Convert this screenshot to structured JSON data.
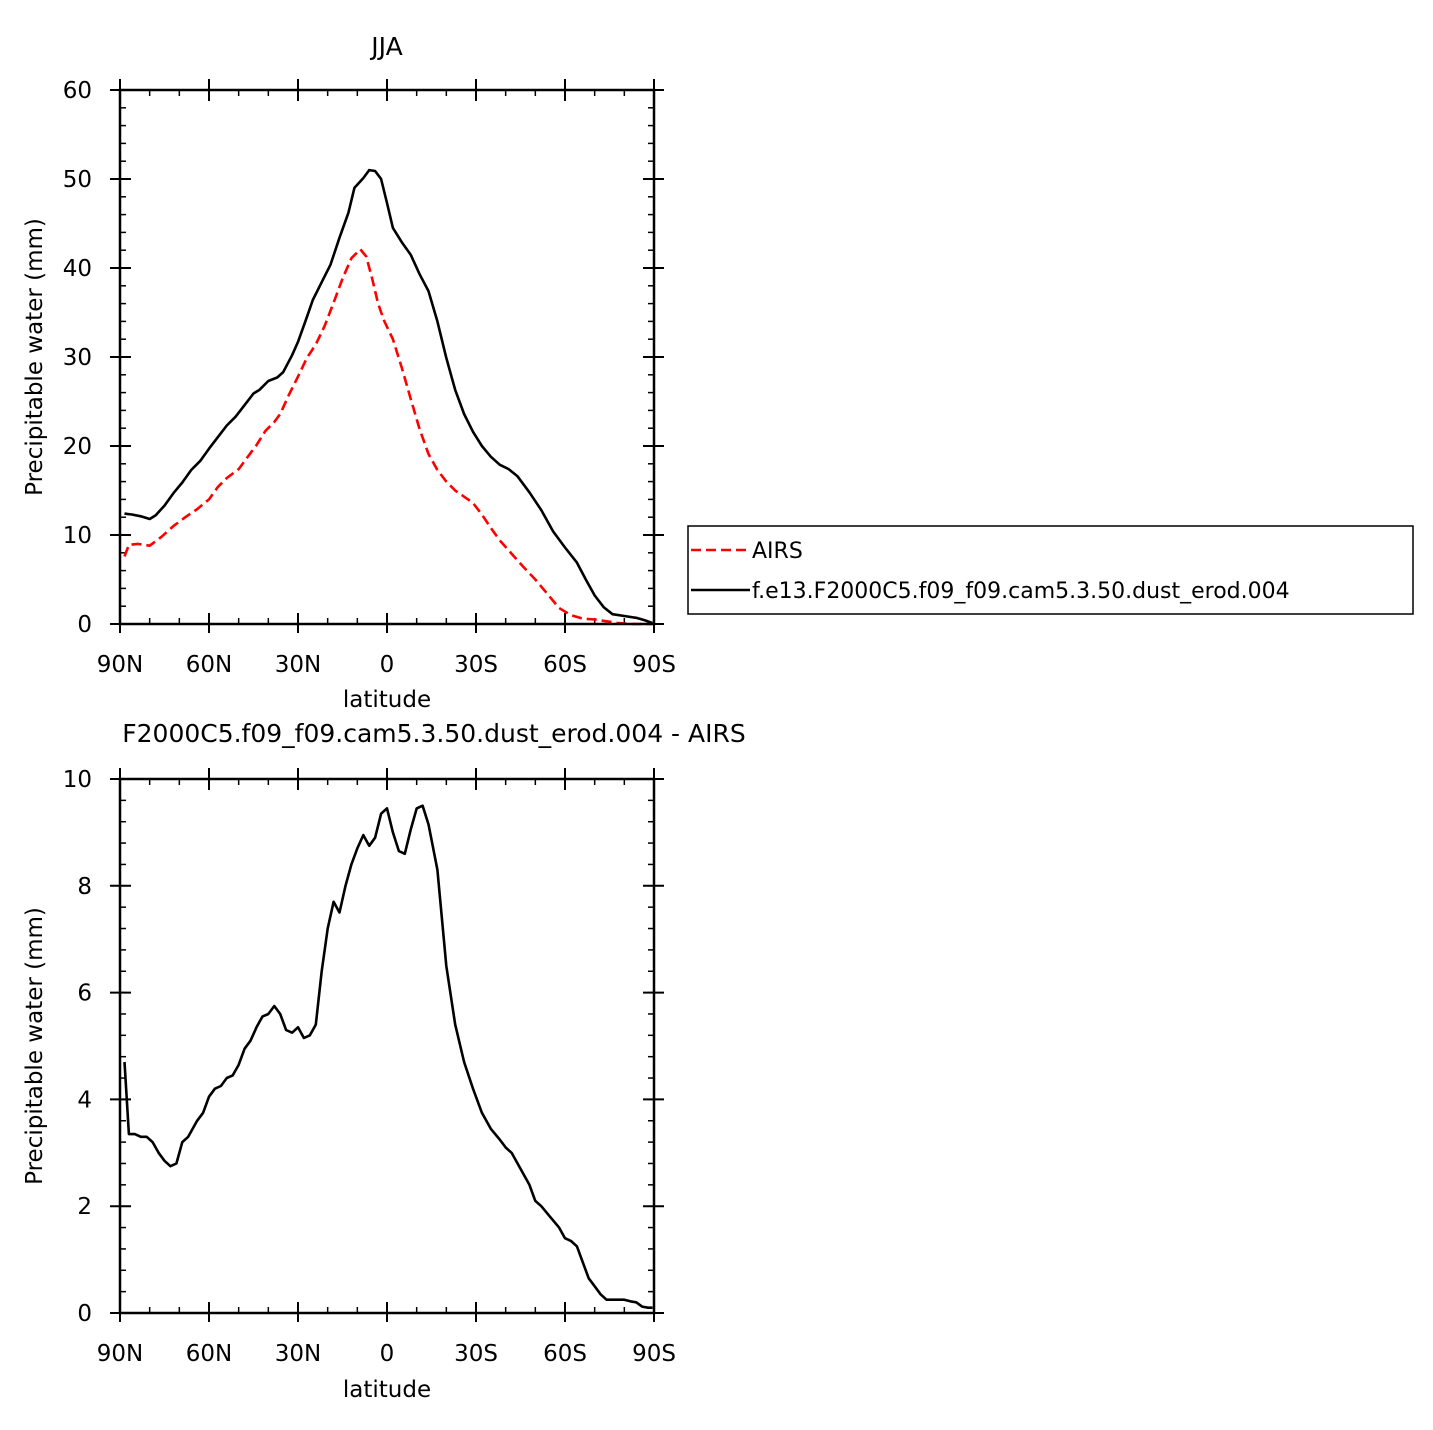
{
  "chart_data": [
    {
      "type": "line",
      "title": "JJA",
      "xlabel": "latitude",
      "ylabel": "Precipitable water (mm)",
      "xlim": [
        90,
        -90
      ],
      "ylim": [
        0,
        60
      ],
      "xticks": [
        90,
        60,
        30,
        0,
        -30,
        -60,
        -90
      ],
      "xtick_labels": [
        "90N",
        "60N",
        "30N",
        "0",
        "30S",
        "60S",
        "90S"
      ],
      "yticks": [
        0,
        10,
        20,
        30,
        40,
        50,
        60
      ],
      "ytick_labels": [
        "0",
        "10",
        "20",
        "30",
        "40",
        "50",
        "60"
      ],
      "legend_position": "right",
      "series": [
        {
          "name": "AIRS",
          "color": "#ff0000",
          "dash": "dashed",
          "x": [
            88.5,
            87,
            84,
            80,
            76,
            72,
            68,
            64,
            60,
            57,
            54,
            50,
            46,
            44,
            41,
            38,
            36,
            33,
            30,
            27,
            24,
            21,
            18,
            15,
            12,
            9,
            7,
            5,
            3,
            1,
            -2,
            -5,
            -8,
            -11,
            -14,
            -17,
            -20,
            -23,
            -26,
            -29,
            -32,
            -35,
            -38,
            -42,
            -46,
            -50,
            -54,
            -58,
            -62,
            -66,
            -70,
            -74,
            -78,
            -82,
            -86,
            -88,
            -89.5
          ],
          "y": [
            7.6,
            8.9,
            9.0,
            8.8,
            9.8,
            11.0,
            12.0,
            12.9,
            14.0,
            15.4,
            16.4,
            17.4,
            19.2,
            20.1,
            21.7,
            22.7,
            23.6,
            25.8,
            27.8,
            29.9,
            31.4,
            33.5,
            36.1,
            38.8,
            41.1,
            42.1,
            41.3,
            38.8,
            36.0,
            34.1,
            32.0,
            28.8,
            25.3,
            21.9,
            19.1,
            17.3,
            16.0,
            15.0,
            14.3,
            13.6,
            12.3,
            10.8,
            9.4,
            7.9,
            6.4,
            5.0,
            3.4,
            1.8,
            1.0,
            0.6,
            0.5,
            0.3,
            0.1,
            0.0,
            0.0,
            0.0,
            0.0
          ]
        },
        {
          "name": "f.e13.F2000C5.f09_f09.cam5.3.50.dust_erod.004",
          "color": "#000000",
          "dash": "solid",
          "x": [
            88.5,
            86,
            83,
            80,
            78,
            75,
            72,
            69,
            66,
            63,
            60,
            57,
            54,
            51,
            48,
            45,
            43,
            40,
            37,
            35,
            32,
            30,
            27,
            25,
            22,
            19,
            16,
            13,
            11,
            8,
            6,
            4,
            2,
            0,
            -2,
            -5,
            -8,
            -11,
            -14,
            -17,
            -20,
            -23,
            -26,
            -29,
            -32,
            -35,
            -38,
            -41,
            -44,
            -48,
            -52,
            -56,
            -60,
            -64,
            -67,
            -70,
            -73,
            -76,
            -80,
            -84,
            -87,
            -89.5
          ],
          "y": [
            12.4,
            12.3,
            12.1,
            11.8,
            12.2,
            13.3,
            14.7,
            15.9,
            17.3,
            18.3,
            19.7,
            21.0,
            22.3,
            23.3,
            24.6,
            25.9,
            26.3,
            27.3,
            27.7,
            28.3,
            30.2,
            31.7,
            34.5,
            36.4,
            38.4,
            40.4,
            43.4,
            46.2,
            49.0,
            50.1,
            51.0,
            50.9,
            50.0,
            47.3,
            44.5,
            42.9,
            41.5,
            39.3,
            37.4,
            34.0,
            29.9,
            26.3,
            23.6,
            21.6,
            20.0,
            18.8,
            17.9,
            17.4,
            16.6,
            14.8,
            12.8,
            10.4,
            8.6,
            6.9,
            5.0,
            3.2,
            1.9,
            1.1,
            0.9,
            0.7,
            0.4,
            0.1
          ]
        }
      ]
    },
    {
      "type": "line",
      "title": "F2000C5.f09_f09.cam5.3.50.dust_erod.004 - AIRS",
      "xlabel": "latitude",
      "ylabel": "Precipitable water (mm)",
      "xlim": [
        90,
        -90
      ],
      "ylim": [
        0,
        10
      ],
      "xticks": [
        90,
        60,
        30,
        0,
        -30,
        -60,
        -90
      ],
      "xtick_labels": [
        "90N",
        "60N",
        "30N",
        "0",
        "30S",
        "60S",
        "90S"
      ],
      "yticks": [
        0,
        2,
        4,
        6,
        8,
        10
      ],
      "ytick_labels": [
        "0",
        "2",
        "4",
        "6",
        "8",
        "10"
      ],
      "series": [
        {
          "color": "#000000",
          "dash": "solid",
          "x": [
            88.5,
            87,
            85,
            83,
            81,
            79,
            77,
            75,
            73,
            71,
            69,
            67,
            64,
            62,
            60,
            58,
            56,
            54,
            52,
            50,
            48,
            46,
            44,
            42,
            40,
            38,
            36,
            34,
            32,
            30,
            28,
            26,
            24,
            22,
            20,
            18,
            16,
            14,
            12,
            10,
            8,
            6,
            4,
            2,
            0,
            -2,
            -4,
            -6,
            -8,
            -10,
            -12,
            -14,
            -17,
            -20,
            -23,
            -26,
            -29,
            -32,
            -35,
            -38,
            -40,
            -42,
            -45,
            -48,
            -50,
            -52,
            -55,
            -58,
            -60,
            -62,
            -64,
            -66,
            -68,
            -70,
            -72,
            -74,
            -76,
            -78,
            -80,
            -82,
            -84,
            -86,
            -88,
            -89.5
          ],
          "y": [
            4.7,
            3.35,
            3.35,
            3.3,
            3.3,
            3.2,
            3.0,
            2.85,
            2.75,
            2.8,
            3.2,
            3.3,
            3.6,
            3.75,
            4.05,
            4.2,
            4.25,
            4.4,
            4.45,
            4.65,
            4.95,
            5.1,
            5.35,
            5.55,
            5.6,
            5.75,
            5.6,
            5.3,
            5.25,
            5.35,
            5.15,
            5.2,
            5.4,
            6.4,
            7.2,
            7.7,
            7.5,
            8.0,
            8.4,
            8.7,
            8.95,
            8.75,
            8.9,
            9.35,
            9.45,
            9.0,
            8.65,
            8.6,
            9.05,
            9.45,
            9.5,
            9.15,
            8.3,
            6.5,
            5.4,
            4.7,
            4.2,
            3.75,
            3.45,
            3.25,
            3.1,
            3.0,
            2.7,
            2.4,
            2.1,
            2.0,
            1.8,
            1.6,
            1.4,
            1.35,
            1.25,
            0.95,
            0.65,
            0.5,
            0.35,
            0.25,
            0.25,
            0.25,
            0.25,
            0.22,
            0.2,
            0.12,
            0.1,
            0.1
          ]
        }
      ]
    }
  ]
}
